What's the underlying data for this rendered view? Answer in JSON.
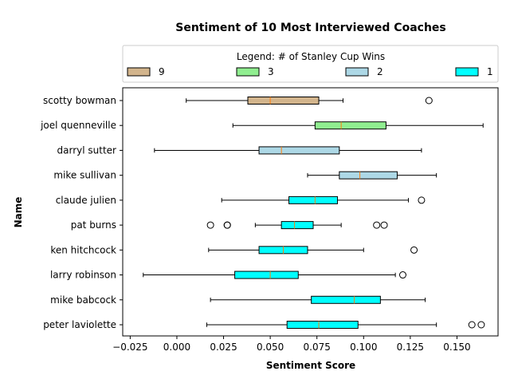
{
  "chart_data": {
    "type": "boxplot",
    "orientation": "horizontal",
    "title": "Sentiment of 10 Most Interviewed Coaches",
    "xlabel": "Sentiment Score",
    "ylabel": "Name",
    "xlim": [
      -0.029,
      0.172
    ],
    "xticks": [
      -0.025,
      0.0,
      0.025,
      0.05,
      0.075,
      0.1,
      0.125,
      0.15
    ],
    "xtick_labels": [
      "−0.025",
      "0.000",
      "0.025",
      "0.050",
      "0.075",
      "0.100",
      "0.125",
      "0.150"
    ],
    "legend": {
      "title": "Legend: # of Stanley Cup Wins",
      "placement": "top",
      "entries": [
        {
          "label": "9",
          "color": "#d2b48c"
        },
        {
          "label": "3",
          "color": "#90ee90"
        },
        {
          "label": "2",
          "color": "#add8e6"
        },
        {
          "label": "1",
          "color": "#00ffff"
        }
      ]
    },
    "median_color": "#ff7f0e",
    "coaches": [
      {
        "name": "scotty bowman",
        "cups": 9,
        "color": "#d2b48c",
        "whisker_low": 0.005,
        "q1": 0.038,
        "median": 0.05,
        "q3": 0.076,
        "whisker_high": 0.089,
        "outliers": [
          0.135
        ]
      },
      {
        "name": "joel quenneville",
        "cups": 3,
        "color": "#90ee90",
        "whisker_low": 0.03,
        "q1": 0.074,
        "median": 0.088,
        "q3": 0.112,
        "whisker_high": 0.164,
        "outliers": []
      },
      {
        "name": "darryl sutter",
        "cups": 2,
        "color": "#add8e6",
        "whisker_low": -0.012,
        "q1": 0.044,
        "median": 0.056,
        "q3": 0.087,
        "whisker_high": 0.131,
        "outliers": []
      },
      {
        "name": "mike sullivan",
        "cups": 2,
        "color": "#add8e6",
        "whisker_low": 0.07,
        "q1": 0.087,
        "median": 0.098,
        "q3": 0.118,
        "whisker_high": 0.139,
        "outliers": []
      },
      {
        "name": "claude julien",
        "cups": 1,
        "color": "#00ffff",
        "whisker_low": 0.024,
        "q1": 0.06,
        "median": 0.074,
        "q3": 0.086,
        "whisker_high": 0.124,
        "outliers": [
          0.131
        ]
      },
      {
        "name": "pat burns",
        "cups": 1,
        "color": "#00ffff",
        "whisker_low": 0.042,
        "q1": 0.056,
        "median": 0.063,
        "q3": 0.073,
        "whisker_high": 0.088,
        "outliers": [
          0.018,
          0.027,
          0.027,
          0.107,
          0.111
        ]
      },
      {
        "name": "ken hitchcock",
        "cups": 1,
        "color": "#00ffff",
        "whisker_low": 0.017,
        "q1": 0.044,
        "median": 0.057,
        "q3": 0.07,
        "whisker_high": 0.1,
        "outliers": [
          0.127
        ]
      },
      {
        "name": "larry robinson",
        "cups": 1,
        "color": "#00ffff",
        "whisker_low": -0.018,
        "q1": 0.031,
        "median": 0.05,
        "q3": 0.065,
        "whisker_high": 0.117,
        "outliers": [
          0.121
        ]
      },
      {
        "name": "mike babcock",
        "cups": 1,
        "color": "#00ffff",
        "whisker_low": 0.018,
        "q1": 0.072,
        "median": 0.095,
        "q3": 0.109,
        "whisker_high": 0.133,
        "outliers": []
      },
      {
        "name": "peter laviolette",
        "cups": 1,
        "color": "#00ffff",
        "whisker_low": 0.016,
        "q1": 0.059,
        "median": 0.076,
        "q3": 0.097,
        "whisker_high": 0.139,
        "outliers": [
          0.158,
          0.163
        ]
      }
    ]
  }
}
